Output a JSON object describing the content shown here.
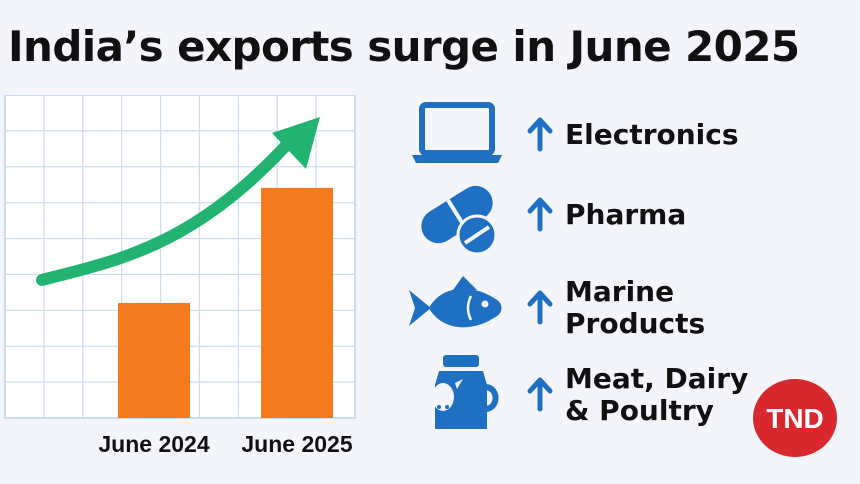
{
  "title": "India’s exports surge in June 2025",
  "colors": {
    "bar": "#f47a20",
    "trend_arrow": "#21b36f",
    "icon": "#1f6fc2",
    "grid": "#c9dcf2",
    "logo_bg": "#d9272e"
  },
  "chart_data": {
    "type": "bar",
    "categories": [
      "June 2024",
      "June 2025"
    ],
    "values": [
      114,
      228
    ],
    "ylim": [
      0,
      320
    ],
    "grid": true,
    "trend_arrow": "rising"
  },
  "sectors": [
    {
      "icon": "laptop-icon",
      "trend": "up",
      "label": "Electronics"
    },
    {
      "icon": "pill-icon",
      "trend": "up",
      "label": "Pharma"
    },
    {
      "icon": "fish-icon",
      "trend": "up",
      "label": "Marine\nProducts"
    },
    {
      "icon": "milk-can-cow-icon",
      "trend": "up",
      "label": "Meat, Dairy\n& Poultry"
    }
  ],
  "logo": {
    "text": "TND"
  }
}
